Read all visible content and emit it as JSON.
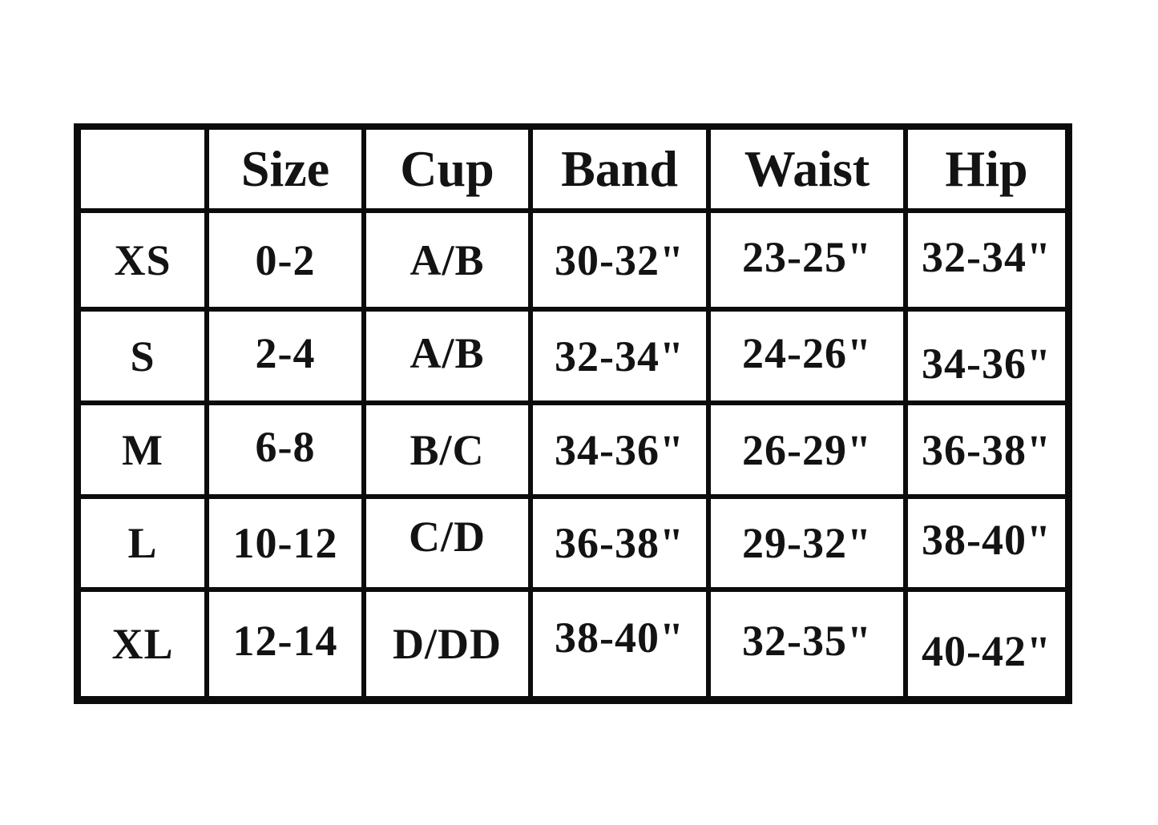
{
  "chart_data": {
    "type": "table",
    "title": "",
    "columns": [
      "",
      "Size",
      "Cup",
      "Band",
      "Waist",
      "Hip"
    ],
    "rows": [
      [
        "XS",
        "0-2",
        "A/B",
        "30-32\"",
        "23-25\"",
        "32-34\""
      ],
      [
        "S",
        "2-4",
        "A/B",
        "32-34\"",
        "24-26\"",
        "34-36\""
      ],
      [
        "M",
        "6-8",
        "B/C",
        "34-36\"",
        "26-29\"",
        "36-38\""
      ],
      [
        "L",
        "10-12",
        "C/D",
        "36-38\"",
        "29-32\"",
        "38-40\""
      ],
      [
        "XL",
        "12-14",
        "D/DD",
        "38-40\"",
        "32-35\"",
        "40-42\""
      ]
    ],
    "layout": {
      "grid": "on",
      "header_row": true,
      "row_label_column": true
    },
    "colors": {
      "border": "#0c0c0c",
      "background": "#ffffff",
      "text": "#131313"
    }
  }
}
